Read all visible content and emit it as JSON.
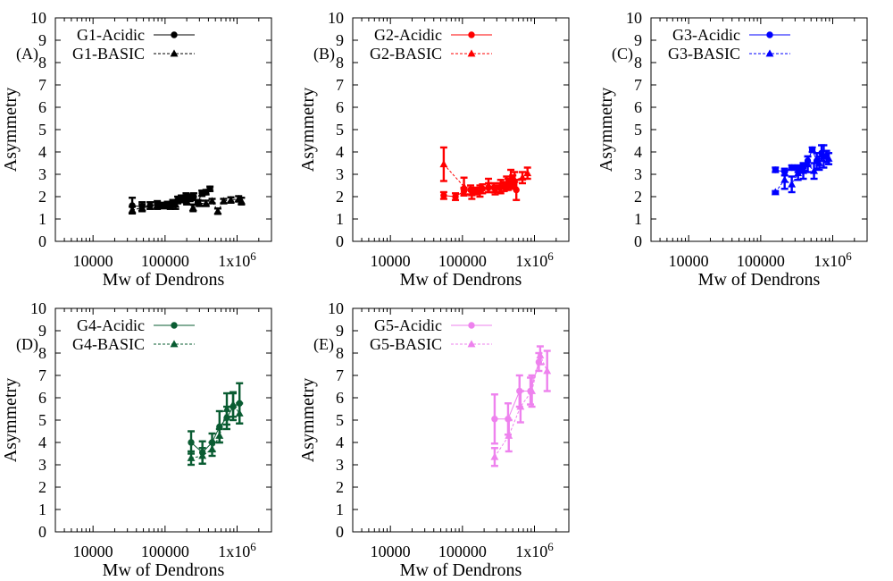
{
  "figure": {
    "y_axis_label": "Asymmetry",
    "x_axis_label": "Mw of Dendrons"
  },
  "chart_data": [
    {
      "type": "scatter",
      "panel_label": "(A)",
      "color": "#000000",
      "xscale": "log",
      "xlim": [
        3000,
        3000000
      ],
      "ylim": [
        0,
        10
      ],
      "xticks": [
        "10000",
        "100000",
        "1x10^6"
      ],
      "yticks": [
        "0",
        "1",
        "2",
        "3",
        "4",
        "5",
        "6",
        "7",
        "8",
        "9",
        "10"
      ],
      "legend_position": "top-left",
      "xlabel": "Mw of Dendrons",
      "ylabel": "Asymmetry",
      "series": [
        {
          "name": "G1-Acidic",
          "marker": "circle",
          "line": "solid",
          "x": [
            35000,
            48000,
            62000,
            78000,
            92000,
            108000,
            128000,
            150000,
            172000,
            196000,
            222000,
            250000,
            285000,
            325000,
            370000,
            420000
          ],
          "y": [
            1.6,
            1.55,
            1.6,
            1.65,
            1.6,
            1.65,
            1.7,
            1.85,
            1.9,
            2.0,
            1.95,
            2.0,
            1.75,
            2.15,
            2.2,
            2.35
          ],
          "err": [
            0.35,
            0.2,
            0.15,
            0.15,
            0.12,
            0.12,
            0.15,
            0.15,
            0.15,
            0.15,
            0.15,
            0.15,
            0.1,
            0.12,
            0.1,
            0.1
          ]
        },
        {
          "name": "G1-BASIC",
          "marker": "triangle",
          "line": "dashed",
          "x": [
            35000,
            48000,
            78000,
            95000,
            118000,
            140000,
            168000,
            200000,
            245000,
            300000,
            370000,
            450000,
            540000,
            650000,
            820000,
            1050000,
            1150000
          ],
          "y": [
            1.4,
            1.5,
            1.6,
            1.6,
            1.6,
            1.65,
            1.9,
            1.8,
            1.5,
            1.7,
            1.7,
            1.8,
            1.35,
            1.8,
            1.85,
            1.9,
            1.8
          ],
          "err": [
            0.15,
            0.15,
            0.15,
            0.12,
            0.15,
            0.2,
            0.15,
            0.15,
            0.15,
            0.12,
            0.12,
            0.1,
            0.12,
            0.1,
            0.12,
            0.12,
            0.15
          ]
        }
      ]
    },
    {
      "type": "scatter",
      "panel_label": "(B)",
      "color": "#ff0000",
      "xscale": "log",
      "xlim": [
        3000,
        3000000
      ],
      "ylim": [
        0,
        10
      ],
      "xticks": [
        "10000",
        "100000",
        "1x10^6"
      ],
      "yticks": [
        "0",
        "1",
        "2",
        "3",
        "4",
        "5",
        "6",
        "7",
        "8",
        "9",
        "10"
      ],
      "legend_position": "top-left",
      "xlabel": "Mw of Dendrons",
      "ylabel": "Asymmetry",
      "series": [
        {
          "name": "G2-Acidic",
          "marker": "circle",
          "line": "solid",
          "x": [
            55000,
            80000,
            105000,
            130000,
            155000,
            190000,
            230000,
            275000,
            330000,
            380000,
            430000,
            500000,
            560000
          ],
          "y": [
            2.05,
            2.0,
            2.25,
            2.3,
            2.25,
            2.35,
            2.4,
            2.4,
            2.4,
            2.45,
            2.55,
            2.65,
            2.3
          ],
          "err": [
            0.15,
            0.15,
            0.15,
            0.2,
            0.15,
            0.2,
            0.2,
            0.2,
            0.2,
            0.2,
            0.25,
            0.3,
            0.45
          ]
        },
        {
          "name": "G2-BASIC",
          "marker": "triangle",
          "line": "dashed",
          "x": [
            55000,
            105000,
            135000,
            175000,
            230000,
            285000,
            340000,
            410000,
            470000,
            530000,
            680000,
            800000
          ],
          "y": [
            3.45,
            2.45,
            2.15,
            2.25,
            2.5,
            2.3,
            2.45,
            2.6,
            2.8,
            2.75,
            2.85,
            3.05
          ],
          "err": [
            0.75,
            0.4,
            0.25,
            0.25,
            0.3,
            0.2,
            0.3,
            0.3,
            0.4,
            0.35,
            0.25,
            0.25
          ]
        }
      ]
    },
    {
      "type": "scatter",
      "panel_label": "(C)",
      "color": "#0000ff",
      "xscale": "log",
      "xlim": [
        3000,
        3000000
      ],
      "ylim": [
        0,
        10
      ],
      "xticks": [
        "10000",
        "100000",
        "1x10^6"
      ],
      "yticks": [
        "0",
        "1",
        "2",
        "3",
        "4",
        "5",
        "6",
        "7",
        "8",
        "9",
        "10"
      ],
      "legend_position": "top-left",
      "xlabel": "Mw of Dendrons",
      "ylabel": "Asymmetry",
      "series": [
        {
          "name": "G3-Acidic",
          "marker": "circle",
          "line": "solid",
          "x": [
            160000,
            215000,
            270000,
            330000,
            390000,
            450000,
            520000,
            600000,
            700000,
            820000
          ],
          "y": [
            3.2,
            3.1,
            3.3,
            3.25,
            3.3,
            3.6,
            4.1,
            3.6,
            3.95,
            3.8
          ],
          "err": [
            0.1,
            0.15,
            0.1,
            0.15,
            0.15,
            0.2,
            0.1,
            0.35,
            0.35,
            0.25
          ]
        },
        {
          "name": "G3-BASIC",
          "marker": "triangle",
          "line": "dashed",
          "x": [
            160000,
            215000,
            270000,
            330000,
            390000,
            450000,
            550000,
            650000,
            750000,
            880000
          ],
          "y": [
            2.2,
            2.75,
            2.55,
            3.05,
            3.15,
            3.45,
            3.15,
            3.5,
            3.8,
            3.7
          ],
          "err": [
            0.05,
            0.4,
            0.35,
            0.3,
            0.35,
            0.35,
            0.35,
            0.3,
            0.5,
            0.25
          ]
        }
      ]
    },
    {
      "type": "scatter",
      "panel_label": "(D)",
      "color": "#0a5c32",
      "xscale": "log",
      "xlim": [
        3000,
        3000000
      ],
      "ylim": [
        0,
        10
      ],
      "xticks": [
        "10000",
        "100000",
        "1x10^6"
      ],
      "yticks": [
        "0",
        "1",
        "2",
        "3",
        "4",
        "5",
        "6",
        "7",
        "8",
        "9",
        "10"
      ],
      "legend_position": "top-left",
      "xlabel": "Mw of Dendrons",
      "ylabel": "Asymmetry",
      "series": [
        {
          "name": "G4-Acidic",
          "marker": "circle",
          "line": "solid",
          "x": [
            230000,
            330000,
            450000,
            570000,
            720000,
            880000,
            1080000
          ],
          "y": [
            4.0,
            3.55,
            4.0,
            4.7,
            5.1,
            5.6,
            5.75
          ],
          "err": [
            0.5,
            0.5,
            0.4,
            0.7,
            0.5,
            0.6,
            0.9
          ]
        },
        {
          "name": "G4-BASIC",
          "marker": "triangle",
          "line": "dashed",
          "x": [
            230000,
            330000,
            450000,
            570000,
            720000,
            880000,
            1080000
          ],
          "y": [
            3.3,
            3.4,
            3.7,
            4.3,
            5.5,
            5.7,
            5.3
          ],
          "err": [
            0.3,
            0.35,
            0.3,
            0.3,
            0.7,
            0.55,
            0.45
          ]
        }
      ]
    },
    {
      "type": "scatter",
      "panel_label": "(E)",
      "color": "#ee82ee",
      "xscale": "log",
      "xlim": [
        3000,
        3000000
      ],
      "ylim": [
        0,
        10
      ],
      "xticks": [
        "10000",
        "100000",
        "1x10^6"
      ],
      "yticks": [
        "0",
        "1",
        "2",
        "3",
        "4",
        "5",
        "6",
        "7",
        "8",
        "9",
        "10"
      ],
      "legend_position": "top-left",
      "xlabel": "Mw of Dendrons",
      "ylabel": "Asymmetry",
      "series": [
        {
          "name": "G5-Acidic",
          "marker": "circle",
          "line": "solid",
          "x": [
            280000,
            430000,
            620000,
            880000,
            1150000
          ],
          "y": [
            5.05,
            5.05,
            6.3,
            6.3,
            7.6
          ],
          "err": [
            1.1,
            0.7,
            0.7,
            0.6,
            0.4
          ]
        },
        {
          "name": "G5-BASIC",
          "marker": "triangle",
          "line": "dashed",
          "x": [
            280000,
            440000,
            640000,
            920000,
            1200000,
            1500000
          ],
          "y": [
            3.35,
            4.3,
            5.6,
            6.3,
            7.9,
            7.2
          ],
          "err": [
            0.4,
            0.7,
            0.7,
            0.7,
            0.4,
            0.9
          ]
        }
      ]
    }
  ]
}
